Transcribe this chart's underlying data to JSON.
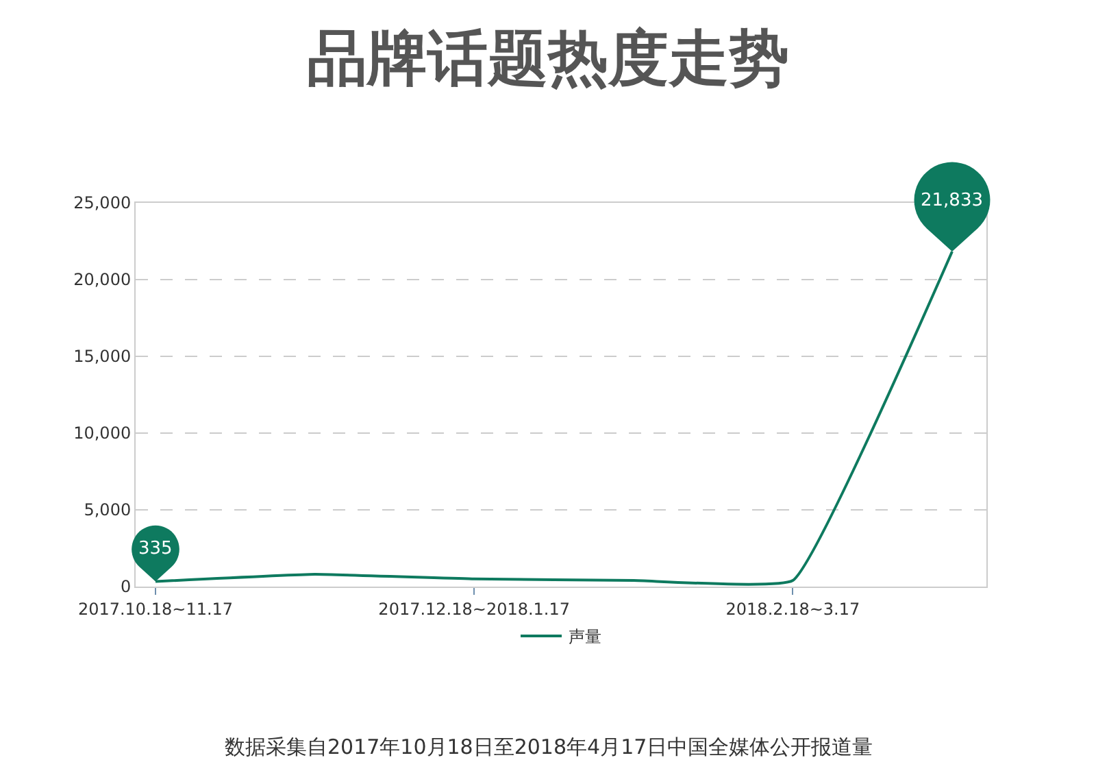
{
  "chart_data": {
    "type": "line",
    "title": "品牌话题热度走势",
    "annotations": [
      "数据采集自2017年10月18日至2018年4月17日中国全媒体公开报道量"
    ],
    "categories": [
      "2017.10.18~11.17",
      null,
      "2017.12.18~2018.1.17",
      null,
      "2018.2.18~3.17",
      null
    ],
    "series": [
      {
        "name": "声量",
        "color": "#0e7a5f",
        "values": [
          335,
          800,
          500,
          400,
          400,
          21833
        ],
        "value_labels": [
          "335",
          null,
          null,
          null,
          null,
          "21,833"
        ]
      }
    ],
    "ylim": [
      0,
      25000
    ],
    "yticks": [
      0,
      {
        "value": 5000,
        "label": "5,000"
      },
      {
        "value": 10000,
        "label": "10,000"
      },
      {
        "value": 15000,
        "label": "15,000"
      },
      {
        "value": 20000,
        "label": "20,000"
      },
      {
        "value": 25000,
        "label": "25,000"
      }
    ],
    "grid": "y",
    "legend": "bottom",
    "marker": "none",
    "line_style": "solid"
  }
}
